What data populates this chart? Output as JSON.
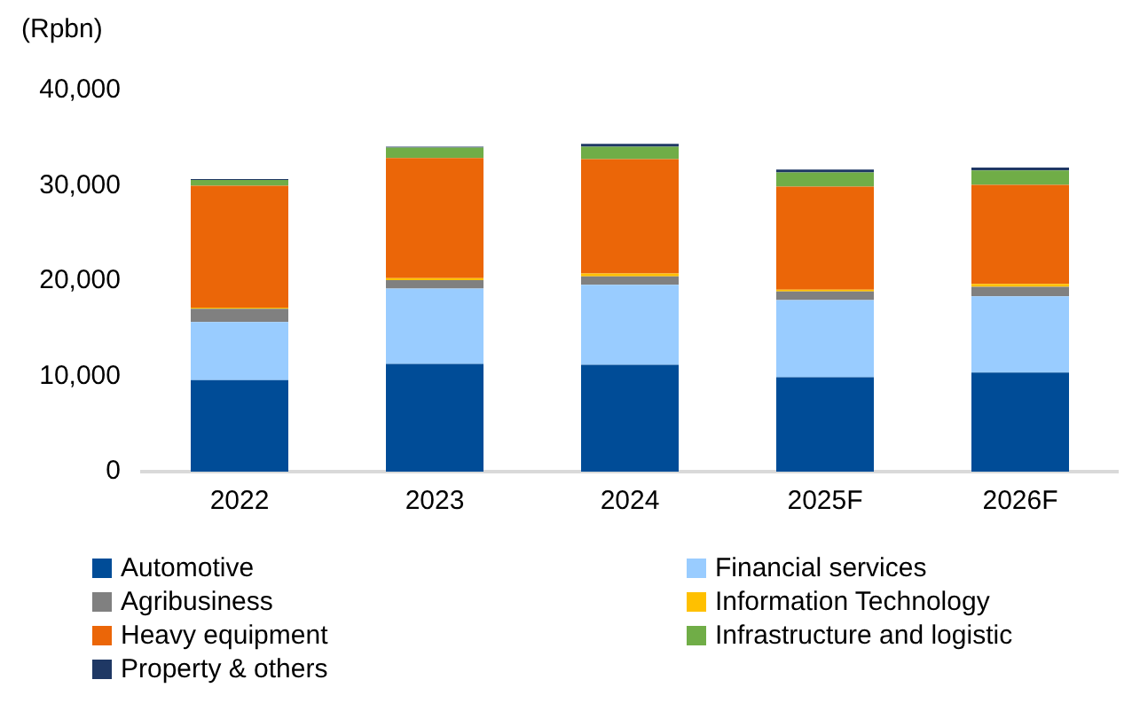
{
  "chart_data": {
    "type": "bar",
    "stacked": true,
    "ylabel": "(Rpbn)",
    "categories": [
      "2022",
      "2023",
      "2024",
      "2025F",
      "2026F"
    ],
    "series": [
      {
        "name": "Automotive",
        "color": "#004c97",
        "values": [
          9600,
          11300,
          11200,
          9900,
          10400
        ]
      },
      {
        "name": "Financial services",
        "color": "#99ccff",
        "values": [
          6100,
          7900,
          8400,
          8100,
          8000
        ]
      },
      {
        "name": "Agribusiness",
        "color": "#808080",
        "values": [
          1400,
          900,
          900,
          900,
          1000
        ]
      },
      {
        "name": "Information Technology",
        "color": "#ffc000",
        "values": [
          100,
          200,
          300,
          200,
          300
        ]
      },
      {
        "name": "Heavy equipment",
        "color": "#eb6608",
        "values": [
          12800,
          12600,
          12000,
          10800,
          10400
        ]
      },
      {
        "name": "Infrastructure and logistic",
        "color": "#70ad47",
        "values": [
          600,
          1100,
          1300,
          1500,
          1500
        ]
      },
      {
        "name": "Property & others",
        "color": "#1f3864",
        "values": [
          100,
          100,
          300,
          300,
          300
        ]
      }
    ],
    "ylim": [
      0,
      40000
    ],
    "yticks": [
      0,
      {
        "value": 10000,
        "label": "10,000"
      },
      {
        "value": 20000,
        "label": "20,000"
      },
      {
        "value": 30000,
        "label": "30,000"
      },
      {
        "value": 40000,
        "label": "40,000"
      }
    ],
    "grid": false,
    "legend": "bottom"
  }
}
